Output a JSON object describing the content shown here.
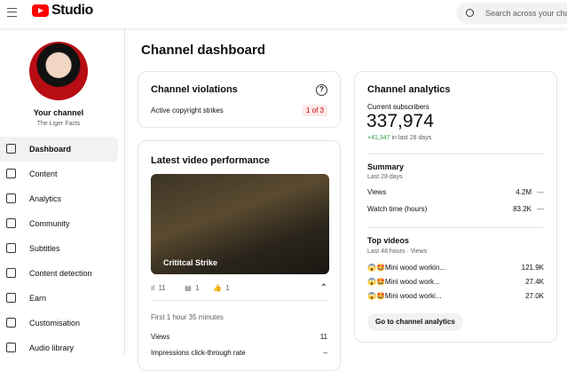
{
  "header": {
    "brand": "Studio",
    "search_placeholder": "Search across your cha"
  },
  "sidebar": {
    "channel_label": "Your channel",
    "channel_name": "The Liger Facts",
    "items": [
      {
        "label": "Dashboard",
        "icon": "dashboard-icon",
        "active": true
      },
      {
        "label": "Content",
        "icon": "content-icon"
      },
      {
        "label": "Analytics",
        "icon": "analytics-icon"
      },
      {
        "label": "Community",
        "icon": "community-icon"
      },
      {
        "label": "Subtitles",
        "icon": "subtitles-icon"
      },
      {
        "label": "Content detection",
        "icon": "copyright-icon"
      },
      {
        "label": "Earn",
        "icon": "dollar-icon"
      },
      {
        "label": "Customisation",
        "icon": "wand-icon"
      },
      {
        "label": "Audio library",
        "icon": "audio-library-icon"
      }
    ]
  },
  "main": {
    "title": "Channel dashboard",
    "violations": {
      "title": "Channel violations",
      "label": "Active copyright strikes",
      "badge": "1 of 3"
    },
    "latest": {
      "title": "Latest video performance",
      "video_title": "Crititcal Strike",
      "views": "11",
      "comments": "1",
      "likes": "1",
      "period": "First 1 hour 35 minutes",
      "rows": [
        {
          "label": "Views",
          "value": "11"
        },
        {
          "label": "Impressions click-through rate",
          "value": "–"
        }
      ]
    },
    "analytics": {
      "title": "Channel analytics",
      "subs_label": "Current subscribers",
      "subs": "337,974",
      "subs_change": "+41,347",
      "subs_change_suffix": " in last 28 days",
      "summary_title": "Summary",
      "summary_period": "Last 28 days",
      "summary": [
        {
          "label": "Views",
          "value": "4.2M",
          "trend": "—"
        },
        {
          "label": "Watch time (hours)",
          "value": "83.2K",
          "trend": "—"
        }
      ],
      "top_title": "Top videos",
      "top_period": "Last 48 hours · Views",
      "top": [
        {
          "title": "😱🤩Mini wood workin...",
          "value": "121.9K"
        },
        {
          "title": "😱🤩Mini wood work...",
          "value": "27.4K"
        },
        {
          "title": "😱🤩Mini wood worki...",
          "value": "27.0K"
        }
      ],
      "button": "Go to channel analytics"
    }
  },
  "colors": {
    "accent": "#ff0000",
    "positive": "#2ba640",
    "badge_bg": "#fde8e8",
    "badge_text": "#cc0000"
  }
}
